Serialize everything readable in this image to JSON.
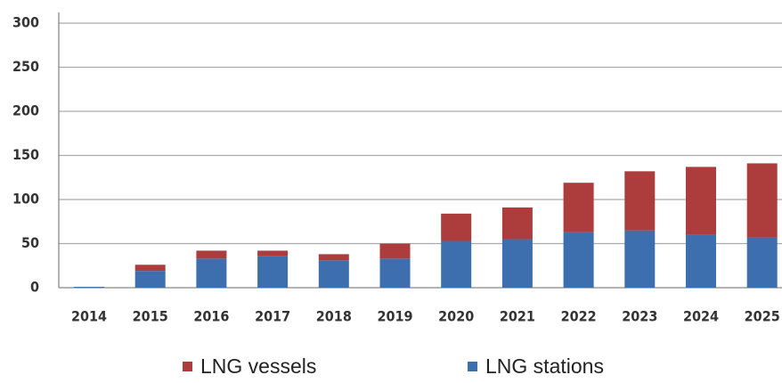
{
  "chart_data": {
    "type": "stacked_bar",
    "categories": [
      "2014",
      "2015",
      "2016",
      "2017",
      "2018",
      "2019",
      "2020",
      "2021",
      "2022",
      "2023",
      "2024",
      "2025"
    ],
    "series": [
      {
        "name": "LNG stations",
        "color": "#3d6fae",
        "values": [
          1,
          19,
          33,
          36,
          31,
          33,
          53,
          55,
          63,
          65,
          60,
          57
        ]
      },
      {
        "name": "LNG vessels",
        "color": "#ad3c3c",
        "values": [
          0,
          7,
          9,
          6,
          7,
          17,
          31,
          36,
          56,
          67,
          77,
          84
        ]
      }
    ],
    "ylim": [
      0,
      300
    ],
    "yticks": [
      0,
      50,
      100,
      150,
      200,
      250,
      300
    ],
    "grid": true,
    "legend": "bottom"
  }
}
